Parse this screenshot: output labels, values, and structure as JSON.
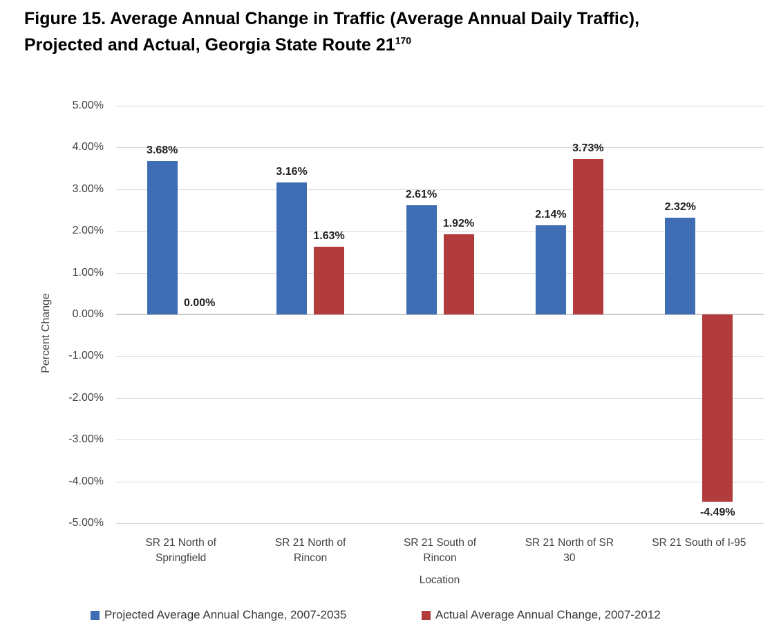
{
  "figure_title": {
    "line1": "Figure 15. Average Annual Change in Traffic (Average Annual Daily Traffic),",
    "line2": "Projected and Actual, Georgia State Route 21",
    "superscript": "170"
  },
  "chart_data": {
    "type": "bar",
    "title": "Average Annual Change in Traffic (Average Annual Daily Traffic), Projected and Actual, Georgia State Route 21",
    "xlabel": "Location",
    "ylabel": "Percent Change",
    "ylim": [
      -5,
      5
    ],
    "ytick_step": 1,
    "grid": true,
    "legend_position": "bottom",
    "categories": [
      "SR 21 North of Springfield",
      "SR 21 North of Rincon",
      "SR 21 South of Rincon",
      "SR 21 North of SR 30",
      "SR 21 South of I-95"
    ],
    "category_label_lines": [
      [
        "SR 21 North of",
        "Springfield"
      ],
      [
        "SR 21 North of",
        "Rincon"
      ],
      [
        "SR 21 South of",
        "Rincon"
      ],
      [
        "SR 21 North of SR",
        "30"
      ],
      [
        "SR 21 South of I-95"
      ]
    ],
    "series": [
      {
        "name": "Projected Average Annual Change, 2007-2035",
        "color": "#3e6db3",
        "values": [
          3.68,
          3.16,
          2.61,
          2.14,
          2.32
        ],
        "data_labels": [
          "3.68%",
          "3.16%",
          "2.61%",
          "2.14%",
          "2.32%"
        ]
      },
      {
        "name": "Actual Average Annual Change, 2007-2012",
        "color": "#b23c3c",
        "values": [
          0.0,
          1.63,
          1.92,
          3.73,
          -4.49
        ],
        "data_labels": [
          "0.00%",
          "1.63%",
          "1.92%",
          "3.73%",
          "-4.49%"
        ]
      }
    ],
    "yticks": [
      {
        "value": 5,
        "label": "5.00%"
      },
      {
        "value": 4,
        "label": "4.00%"
      },
      {
        "value": 3,
        "label": "3.00%"
      },
      {
        "value": 2,
        "label": "2.00%"
      },
      {
        "value": 1,
        "label": "1.00%"
      },
      {
        "value": 0,
        "label": "0.00%"
      },
      {
        "value": -1,
        "label": "-1.00%"
      },
      {
        "value": -2,
        "label": "-2.00%"
      },
      {
        "value": -3,
        "label": "-3.00%"
      },
      {
        "value": -4,
        "label": "-4.00%"
      },
      {
        "value": -5,
        "label": "-5.00%"
      }
    ]
  }
}
